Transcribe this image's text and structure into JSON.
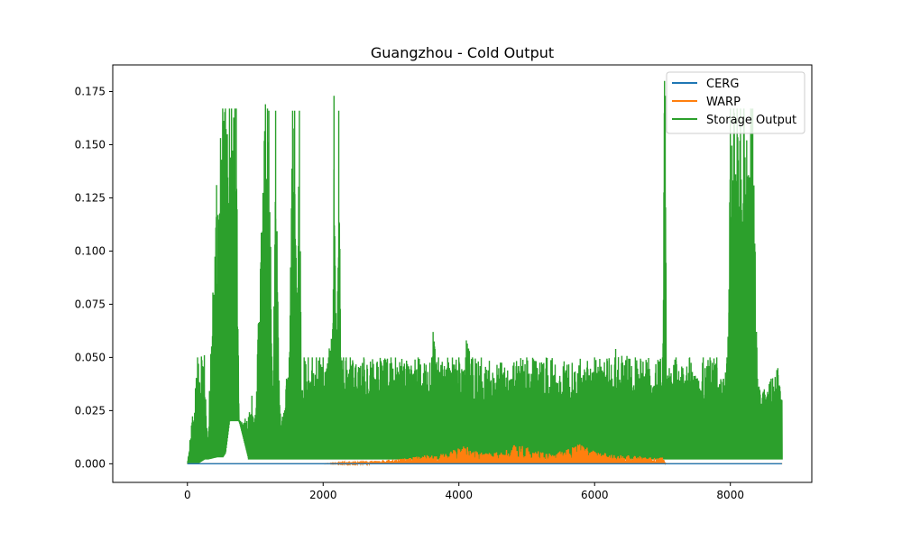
{
  "chart_data": {
    "type": "line",
    "title": "Guangzhou - Cold Output",
    "xlabel": "",
    "ylabel": "",
    "xlim": [
      -1100,
      9200
    ],
    "ylim": [
      -0.00875,
      0.1875
    ],
    "xticks": [
      0,
      2000,
      4000,
      6000,
      8000
    ],
    "xtick_labels": [
      "0",
      "2000",
      "4000",
      "6000",
      "8000"
    ],
    "yticks": [
      0.0,
      0.025,
      0.05,
      0.075,
      0.1,
      0.125,
      0.15,
      0.175
    ],
    "ytick_labels": [
      "0.000",
      "0.025",
      "0.050",
      "0.075",
      "0.100",
      "0.125",
      "0.150",
      "0.175"
    ],
    "grid": false,
    "legend_position": "top-right",
    "series": [
      {
        "name": "CERG",
        "color": "#1f77b4",
        "x": [
          0,
          8760
        ],
        "y": [
          0.0,
          0.0
        ]
      },
      {
        "name": "WARP",
        "color": "#ff7f0e",
        "x": [
          0,
          2000,
          2500,
          3000,
          3300,
          3500,
          3800,
          4000,
          4100,
          4300,
          4500,
          4700,
          4800,
          5000,
          5200,
          5400,
          5600,
          5800,
          6000,
          6200,
          6400,
          6600,
          6800,
          7000,
          7050,
          8760
        ],
        "y": [
          0.0,
          0.0,
          0.001,
          0.002,
          0.003,
          0.004,
          0.005,
          0.008,
          0.009,
          0.006,
          0.005,
          0.007,
          0.009,
          0.008,
          0.006,
          0.005,
          0.007,
          0.01,
          0.006,
          0.005,
          0.004,
          0.004,
          0.003,
          0.003,
          0.0,
          0.0
        ]
      },
      {
        "name": "Storage Output",
        "color": "#2ca02c",
        "x": [
          0,
          60,
          150,
          250,
          300,
          430,
          520,
          560,
          620,
          650,
          700,
          720,
          760,
          900,
          950,
          1000,
          1150,
          1180,
          1200,
          1260,
          1300,
          1360,
          1400,
          1460,
          1500,
          1550,
          1580,
          1620,
          1650,
          1680,
          1720,
          1780,
          1800,
          1840,
          1900,
          1950,
          2000,
          2080,
          2150,
          2160,
          2200,
          2230,
          2260,
          2300,
          2340,
          2400,
          2600,
          3000,
          3400,
          3600,
          3620,
          3700,
          4000,
          4100,
          4110,
          4200,
          5000,
          6000,
          6300,
          6310,
          6600,
          7000,
          7030,
          7040,
          7060,
          7100,
          7200,
          7300,
          7400,
          7500,
          7600,
          7700,
          7800,
          7900,
          7950,
          7980,
          8000,
          8050,
          8100,
          8150,
          8200,
          8300,
          8330,
          8400,
          8500,
          8600,
          8700,
          8760
        ],
        "y": [
          0.0,
          0.018,
          0.05,
          0.051,
          0.011,
          0.131,
          0.167,
          0.167,
          0.167,
          0.167,
          0.167,
          0.167,
          0.02,
          0.022,
          0.032,
          0.023,
          0.169,
          0.167,
          0.166,
          0.025,
          0.166,
          0.027,
          0.022,
          0.04,
          0.05,
          0.166,
          0.166,
          0.07,
          0.166,
          0.03,
          0.05,
          0.05,
          0.038,
          0.05,
          0.05,
          0.05,
          0.05,
          0.05,
          0.082,
          0.173,
          0.05,
          0.166,
          0.05,
          0.05,
          0.05,
          0.05,
          0.05,
          0.05,
          0.05,
          0.05,
          0.062,
          0.05,
          0.05,
          0.05,
          0.058,
          0.05,
          0.05,
          0.05,
          0.05,
          0.054,
          0.05,
          0.05,
          0.18,
          0.173,
          0.04,
          0.045,
          0.05,
          0.045,
          0.05,
          0.04,
          0.05,
          0.05,
          0.05,
          0.04,
          0.05,
          0.082,
          0.167,
          0.167,
          0.167,
          0.167,
          0.167,
          0.167,
          0.167,
          0.04,
          0.035,
          0.04,
          0.045,
          0.03
        ],
        "band_low": [
          0.0,
          0.0,
          0.0,
          0.002,
          0.002,
          0.003,
          0.003,
          0.005,
          0.02,
          0.02,
          0.02,
          0.02,
          0.02,
          0.002,
          0.002,
          0.002,
          0.002,
          0.002,
          0.002,
          0.002,
          0.002,
          0.002,
          0.002,
          0.002,
          0.002,
          0.002,
          0.002,
          0.002,
          0.002,
          0.002,
          0.002,
          0.002,
          0.002,
          0.002,
          0.002,
          0.002,
          0.002,
          0.002,
          0.002,
          0.002,
          0.002,
          0.002,
          0.002,
          0.002,
          0.002,
          0.002,
          0.002,
          0.002,
          0.002,
          0.002,
          0.002,
          0.002,
          0.002,
          0.002,
          0.002,
          0.002,
          0.002,
          0.002,
          0.002,
          0.002,
          0.002,
          0.002,
          0.002,
          0.002,
          0.002,
          0.002,
          0.002,
          0.002,
          0.002,
          0.002,
          0.002,
          0.002,
          0.002,
          0.002,
          0.002,
          0.002,
          0.002,
          0.002,
          0.002,
          0.002,
          0.002,
          0.002,
          0.002,
          0.002,
          0.002,
          0.002,
          0.002,
          0.002
        ]
      }
    ]
  }
}
